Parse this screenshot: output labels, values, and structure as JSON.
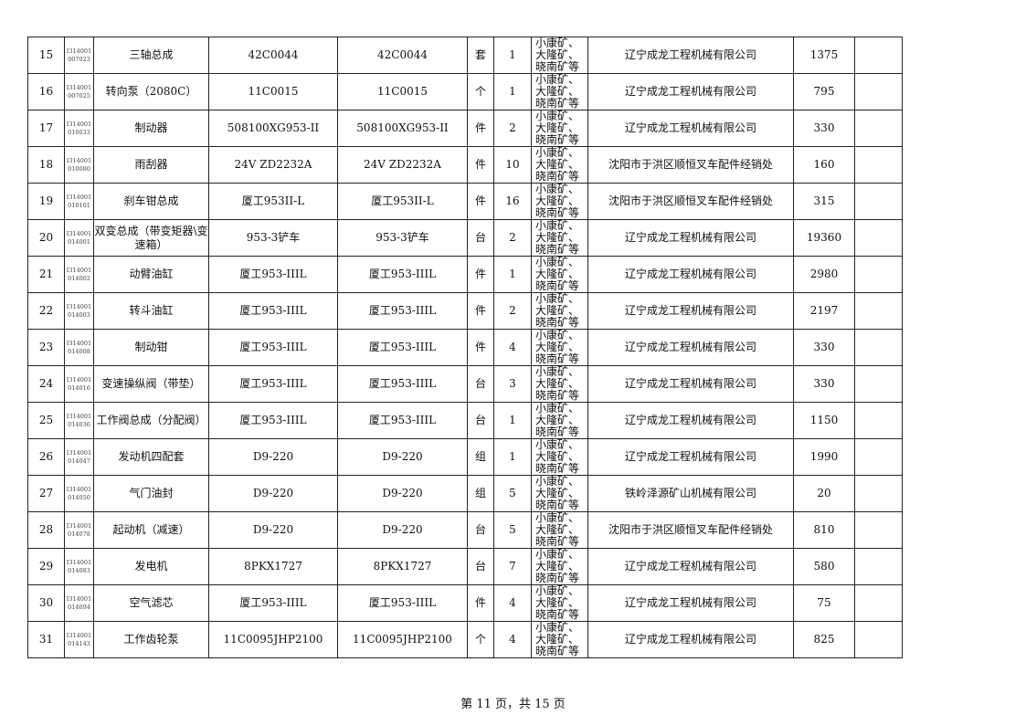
{
  "rows": [
    {
      "no": "15",
      "code": "I314001 007023",
      "name": "三轴总成",
      "spec": "42C0044",
      "model": "42C0044",
      "unit": "套",
      "qty": "1",
      "location": "小康矿、大隆矿、晓南矿等",
      "supplier": "辽宁成龙工程机械有限公司",
      "price": "1375",
      "note": ""
    },
    {
      "no": "16",
      "code": "I314001 007025",
      "name": "转向泵（2080C）",
      "spec": "11C0015",
      "model": "11C0015",
      "unit": "个",
      "qty": "1",
      "location": "小康矿、大隆矿、晓南矿等",
      "supplier": "辽宁成龙工程机械有限公司",
      "price": "795",
      "note": ""
    },
    {
      "no": "17",
      "code": "I314001 010033",
      "name": "制动器",
      "spec": "508100XG953-II",
      "model": "508100XG953-II",
      "unit": "件",
      "qty": "2",
      "location": "小康矿、大隆矿、晓南矿等",
      "supplier": "辽宁成龙工程机械有限公司",
      "price": "330",
      "note": ""
    },
    {
      "no": "18",
      "code": "I314001 010080",
      "name": "雨刮器",
      "spec": "24V ZD2232A",
      "model": "24V ZD2232A",
      "unit": "件",
      "qty": "10",
      "location": "小康矿、大隆矿、晓南矿等",
      "supplier": "沈阳市于洪区顺恒叉车配件经销处",
      "price": "160",
      "note": ""
    },
    {
      "no": "19",
      "code": "I314001 010101",
      "name": "刹车钳总成",
      "spec": "厦工953II-L",
      "model": "厦工953II-L",
      "unit": "件",
      "qty": "16",
      "location": "小康矿、大隆矿、晓南矿等",
      "supplier": "沈阳市于洪区顺恒叉车配件经销处",
      "price": "315",
      "note": ""
    },
    {
      "no": "20",
      "code": "I314001 014001",
      "name": "双变总成（带变矩器\\变速箱）",
      "spec": "953-3铲车",
      "model": "953-3铲车",
      "unit": "台",
      "qty": "2",
      "location": "小康矿、大隆矿、晓南矿等",
      "supplier": "辽宁成龙工程机械有限公司",
      "price": "19360",
      "note": ""
    },
    {
      "no": "21",
      "code": "I314001 014002",
      "name": "动臂油缸",
      "spec": "厦工953-IIIL",
      "model": "厦工953-IIIL",
      "unit": "件",
      "qty": "1",
      "location": "小康矿、大隆矿、晓南矿等",
      "supplier": "辽宁成龙工程机械有限公司",
      "price": "2980",
      "note": ""
    },
    {
      "no": "22",
      "code": "I314001 014003",
      "name": "转斗油缸",
      "spec": "厦工953-IIIL",
      "model": "厦工953-IIIL",
      "unit": "件",
      "qty": "2",
      "location": "小康矿、大隆矿、晓南矿等",
      "supplier": "辽宁成龙工程机械有限公司",
      "price": "2197",
      "note": ""
    },
    {
      "no": "23",
      "code": "I314001 014008",
      "name": "制动钳",
      "spec": "厦工953-IIIL",
      "model": "厦工953-IIIL",
      "unit": "件",
      "qty": "4",
      "location": "小康矿、大隆矿、晓南矿等",
      "supplier": "辽宁成龙工程机械有限公司",
      "price": "330",
      "note": ""
    },
    {
      "no": "24",
      "code": "I314001 014016",
      "name": "变速操纵阀（带垫）",
      "spec": "厦工953-IIIL",
      "model": "厦工953-IIIL",
      "unit": "台",
      "qty": "3",
      "location": "小康矿、大隆矿、晓南矿等",
      "supplier": "辽宁成龙工程机械有限公司",
      "price": "330",
      "note": ""
    },
    {
      "no": "25",
      "code": "I314001 014036",
      "name": "工作阀总成（分配阀）",
      "spec": "厦工953-IIIL",
      "model": "厦工953-IIIL",
      "unit": "台",
      "qty": "1",
      "location": "小康矿、大隆矿、晓南矿等",
      "supplier": "辽宁成龙工程机械有限公司",
      "price": "1150",
      "note": ""
    },
    {
      "no": "26",
      "code": "I314001 014047",
      "name": "发动机四配套",
      "spec": "D9-220",
      "model": "D9-220",
      "unit": "组",
      "qty": "1",
      "location": "小康矿、大隆矿、晓南矿等",
      "supplier": "辽宁成龙工程机械有限公司",
      "price": "1990",
      "note": ""
    },
    {
      "no": "27",
      "code": "I314001 014050",
      "name": "气门油封",
      "spec": "D9-220",
      "model": "D9-220",
      "unit": "组",
      "qty": "5",
      "location": "小康矿、大隆矿、晓南矿等",
      "supplier": "铁岭泽源矿山机械有限公司",
      "price": "20",
      "note": ""
    },
    {
      "no": "28",
      "code": "I314001 014078",
      "name": "起动机（减速）",
      "spec": "D9-220",
      "model": "D9-220",
      "unit": "台",
      "qty": "5",
      "location": "小康矿、大隆矿、晓南矿等",
      "supplier": "沈阳市于洪区顺恒叉车配件经销处",
      "price": "810",
      "note": ""
    },
    {
      "no": "29",
      "code": "I314001 014083",
      "name": "发电机",
      "spec": "8PKX1727",
      "model": "8PKX1727",
      "unit": "台",
      "qty": "7",
      "location": "小康矿、大隆矿、晓南矿等",
      "supplier": "辽宁成龙工程机械有限公司",
      "price": "580",
      "note": ""
    },
    {
      "no": "30",
      "code": "I314001 014094",
      "name": "空气滤芯",
      "spec": "厦工953-IIIL",
      "model": "厦工953-IIIL",
      "unit": "件",
      "qty": "4",
      "location": "小康矿、大隆矿、晓南矿等",
      "supplier": "辽宁成龙工程机械有限公司",
      "price": "75",
      "note": ""
    },
    {
      "no": "31",
      "code": "I314001 014143",
      "name": "工作齿轮泵",
      "spec": "11C0095JHP2100",
      "model": "11C0095JHP2100",
      "unit": "个",
      "qty": "4",
      "location": "小康矿、大隆矿、晓南矿等",
      "supplier": "辽宁成龙工程机械有限公司",
      "price": "825",
      "note": ""
    }
  ],
  "footer": "第 11 页，共 15 页"
}
